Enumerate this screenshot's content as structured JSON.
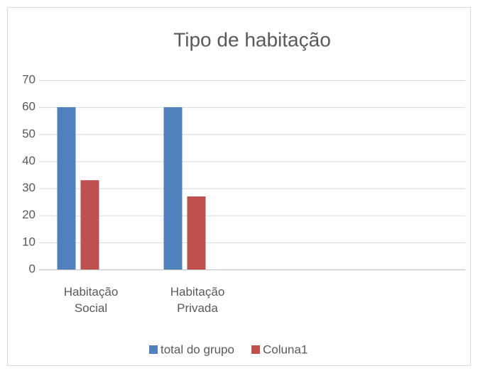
{
  "chart_data": {
    "type": "bar",
    "title": "Tipo de habitação",
    "categories": [
      "Habitação Social",
      "Habitação Privada",
      null,
      null
    ],
    "series": [
      {
        "name": "total do grupo",
        "color": "#4f81bd",
        "values": [
          60,
          60,
          null,
          null
        ]
      },
      {
        "name": "Coluna1",
        "color": "#c0504d",
        "values": [
          33,
          27,
          null,
          null
        ]
      }
    ],
    "ylim": [
      0,
      70
    ],
    "yticks": [
      0,
      10,
      20,
      30,
      40,
      50,
      60,
      70
    ],
    "grid": true,
    "legend": "bottom"
  }
}
